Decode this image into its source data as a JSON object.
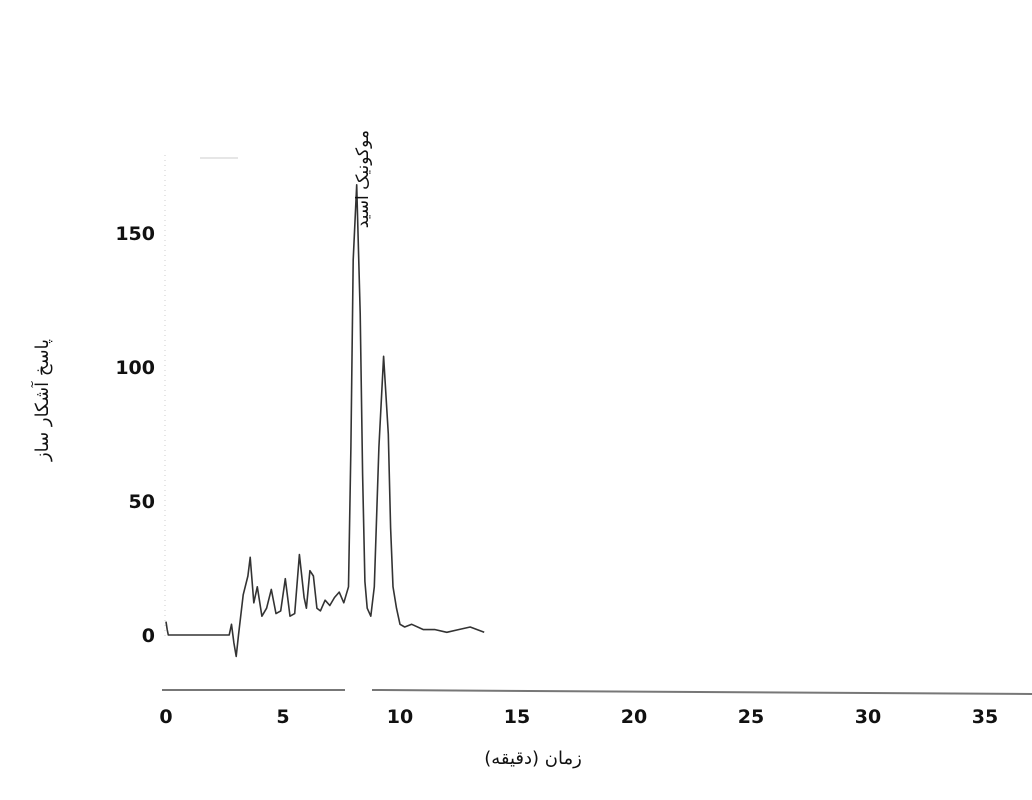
{
  "chart_data": {
    "type": "line",
    "title": "",
    "xlabel": "زمان (دقیقه)",
    "ylabel": "پاسخ آشکار ساز",
    "xlim": [
      0,
      37
    ],
    "ylim": [
      -20,
      170
    ],
    "x_ticks": [
      "0",
      "5",
      "10",
      "15",
      "20",
      "25",
      "30",
      "35"
    ],
    "y_ticks": [
      "0",
      "50",
      "100",
      "150"
    ],
    "grid": false,
    "series": [
      {
        "x": [
          0,
          0.05,
          0.1,
          2.7,
          2.8,
          2.9,
          3.0,
          3.1,
          3.3,
          3.5,
          3.6,
          3.75,
          3.9,
          4.1,
          4.3,
          4.5,
          4.7,
          4.9,
          5.1,
          5.3,
          5.5,
          5.7,
          5.9,
          6.0,
          6.15,
          6.3,
          6.45,
          6.6,
          6.8,
          7.0,
          7.2,
          7.4,
          7.6,
          7.8,
          7.9,
          8.0,
          8.15,
          8.3,
          8.4,
          8.5,
          8.6,
          8.75,
          8.9,
          9.1,
          9.3,
          9.5,
          9.6,
          9.7,
          9.85,
          10.0,
          10.2,
          10.5,
          11.0,
          11.5,
          12.0,
          12.5,
          13.0,
          13.3,
          13.6
        ],
        "y": [
          5,
          2,
          0,
          0,
          4,
          -3,
          -8,
          0,
          15,
          22,
          29,
          12,
          18,
          7,
          10,
          17,
          8,
          9,
          21,
          7,
          8,
          30,
          14,
          10,
          24,
          22,
          10,
          9,
          13,
          11,
          14,
          16,
          12,
          18,
          70,
          140,
          168,
          120,
          60,
          20,
          10,
          7,
          18,
          70,
          104,
          75,
          40,
          18,
          10,
          4,
          3,
          4,
          2,
          2,
          1,
          2,
          3,
          2,
          1
        ]
      }
    ],
    "annotations": [
      {
        "text": "موکونیک اسید",
        "x": 8.2
      }
    ]
  }
}
